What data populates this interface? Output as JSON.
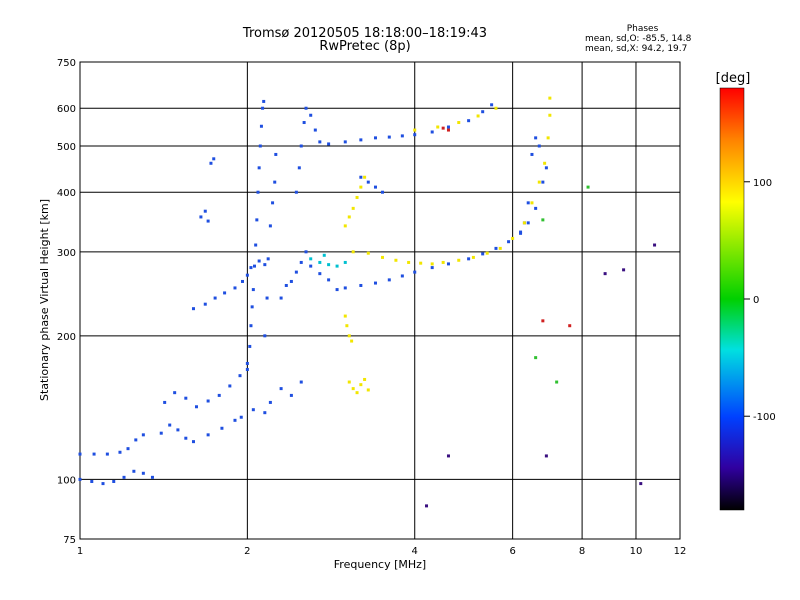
{
  "header": {
    "title": "Tromsø 20120505 18:18:00–18:19:43",
    "subtitle": "RwPretec (8p)"
  },
  "phases_box": {
    "heading": "Phases",
    "line_o": "mean, sd,O: -85.5, 14.8",
    "line_x": "mean, sd,X:  94.2, 19.7"
  },
  "colors": {
    "grid": "#000000",
    "o_mode": "#1f4fe0",
    "x_mode": "#f2e600"
  },
  "chart_data": {
    "type": "scatter",
    "xlabel": "Frequency [MHz]",
    "ylabel": "Stationary phase Virtual Height [km]",
    "x_scale": "log",
    "y_scale": "log",
    "xlim": [
      1,
      12
    ],
    "ylim": [
      75,
      750
    ],
    "x_ticks": [
      1,
      2,
      4,
      6,
      8,
      10,
      12
    ],
    "x_tick_labels": [
      "1",
      "2",
      "4",
      "6",
      "8",
      "10",
      "12"
    ],
    "x_gridlines": [
      2,
      4,
      6,
      8,
      10
    ],
    "y_ticks": [
      75,
      100,
      200,
      300,
      400,
      500,
      600,
      750
    ],
    "y_tick_labels": [
      "75",
      "100",
      "200",
      "300",
      "400",
      "500",
      "600",
      "750"
    ],
    "y_gridlines": [
      100,
      200,
      300,
      400,
      500,
      600
    ],
    "grid": true,
    "colorbar": {
      "label": "[deg]",
      "range": [
        -180,
        180
      ],
      "ticks": [
        100,
        0,
        -100
      ],
      "tick_labels": [
        "100",
        "0",
        "-100"
      ]
    },
    "series": [
      {
        "mode": "O",
        "color": "#1f4fe0",
        "points": [
          [
            1.0,
            100
          ],
          [
            1.05,
            99
          ],
          [
            1.1,
            98
          ],
          [
            1.15,
            99
          ],
          [
            1.2,
            101
          ],
          [
            1.25,
            104
          ],
          [
            1.3,
            103
          ],
          [
            1.35,
            101
          ],
          [
            1.0,
            113
          ],
          [
            1.06,
            113
          ],
          [
            1.12,
            113
          ],
          [
            1.18,
            114
          ],
          [
            1.22,
            116
          ],
          [
            1.26,
            121
          ],
          [
            1.3,
            124
          ],
          [
            1.4,
            125
          ],
          [
            1.45,
            130
          ],
          [
            1.5,
            127
          ],
          [
            1.55,
            122
          ],
          [
            1.6,
            120
          ],
          [
            1.7,
            124
          ],
          [
            1.8,
            128
          ],
          [
            1.9,
            133
          ],
          [
            1.95,
            135
          ],
          [
            1.42,
            145
          ],
          [
            1.48,
            152
          ],
          [
            1.55,
            148
          ],
          [
            1.62,
            142
          ],
          [
            1.7,
            146
          ],
          [
            1.78,
            150
          ],
          [
            1.86,
            157
          ],
          [
            1.94,
            165
          ],
          [
            2.0,
            175
          ],
          [
            1.6,
            228
          ],
          [
            1.68,
            233
          ],
          [
            1.75,
            240
          ],
          [
            1.82,
            246
          ],
          [
            1.9,
            252
          ],
          [
            1.96,
            260
          ],
          [
            2.0,
            268
          ],
          [
            2.03,
            278
          ],
          [
            2.1,
            287
          ],
          [
            2.15,
            282
          ],
          [
            1.65,
            355
          ],
          [
            1.68,
            365
          ],
          [
            1.7,
            348
          ],
          [
            1.72,
            460
          ],
          [
            1.74,
            470
          ],
          [
            2.0,
            170
          ],
          [
            2.02,
            190
          ],
          [
            2.03,
            210
          ],
          [
            2.04,
            230
          ],
          [
            2.05,
            250
          ],
          [
            2.06,
            280
          ],
          [
            2.07,
            310
          ],
          [
            2.08,
            350
          ],
          [
            2.09,
            400
          ],
          [
            2.1,
            450
          ],
          [
            2.11,
            500
          ],
          [
            2.12,
            550
          ],
          [
            2.13,
            600
          ],
          [
            2.14,
            620
          ],
          [
            2.15,
            200
          ],
          [
            2.17,
            240
          ],
          [
            2.18,
            290
          ],
          [
            2.2,
            340
          ],
          [
            2.22,
            380
          ],
          [
            2.24,
            420
          ],
          [
            2.25,
            480
          ],
          [
            2.3,
            240
          ],
          [
            2.35,
            255
          ],
          [
            2.4,
            260
          ],
          [
            2.45,
            272
          ],
          [
            2.5,
            285
          ],
          [
            2.55,
            300
          ],
          [
            2.6,
            280
          ],
          [
            2.7,
            270
          ],
          [
            2.8,
            262
          ],
          [
            2.45,
            400
          ],
          [
            2.48,
            450
          ],
          [
            2.5,
            500
          ],
          [
            2.53,
            560
          ],
          [
            2.55,
            600
          ],
          [
            2.6,
            580
          ],
          [
            2.65,
            540
          ],
          [
            2.7,
            510
          ],
          [
            2.8,
            505
          ],
          [
            3.0,
            510
          ],
          [
            3.2,
            515
          ],
          [
            3.4,
            520
          ],
          [
            3.6,
            522
          ],
          [
            3.8,
            525
          ],
          [
            4.0,
            528
          ],
          [
            4.3,
            535
          ],
          [
            4.6,
            548
          ],
          [
            5.0,
            565
          ],
          [
            5.3,
            590
          ],
          [
            5.5,
            610
          ],
          [
            2.9,
            250
          ],
          [
            3.0,
            252
          ],
          [
            3.2,
            255
          ],
          [
            3.4,
            258
          ],
          [
            3.6,
            262
          ],
          [
            3.8,
            267
          ],
          [
            4.0,
            272
          ],
          [
            4.3,
            278
          ],
          [
            4.6,
            283
          ],
          [
            5.0,
            290
          ],
          [
            5.3,
            297
          ],
          [
            5.6,
            305
          ],
          [
            5.9,
            315
          ],
          [
            6.2,
            328
          ],
          [
            6.4,
            345
          ],
          [
            6.6,
            370
          ],
          [
            6.8,
            420
          ],
          [
            6.9,
            450
          ],
          [
            6.2,
            330
          ],
          [
            6.3,
            345
          ],
          [
            6.4,
            380
          ],
          [
            6.5,
            480
          ],
          [
            6.6,
            520
          ],
          [
            6.7,
            500
          ],
          [
            3.2,
            430
          ],
          [
            3.3,
            420
          ],
          [
            3.4,
            410
          ],
          [
            3.5,
            400
          ],
          [
            2.05,
            140
          ],
          [
            2.15,
            138
          ],
          [
            2.2,
            145
          ],
          [
            2.3,
            155
          ],
          [
            2.4,
            150
          ],
          [
            2.5,
            160
          ]
        ]
      },
      {
        "mode": "X",
        "color": "#f2e600",
        "points": [
          [
            3.1,
            300
          ],
          [
            3.3,
            298
          ],
          [
            3.5,
            292
          ],
          [
            3.7,
            288
          ],
          [
            3.9,
            285
          ],
          [
            4.1,
            284
          ],
          [
            4.3,
            283
          ],
          [
            4.5,
            285
          ],
          [
            4.8,
            288
          ],
          [
            5.1,
            292
          ],
          [
            5.4,
            298
          ],
          [
            5.7,
            305
          ],
          [
            6.0,
            320
          ],
          [
            6.3,
            345
          ],
          [
            6.5,
            380
          ],
          [
            6.7,
            420
          ],
          [
            6.85,
            460
          ],
          [
            6.95,
            520
          ],
          [
            7.0,
            580
          ],
          [
            7.0,
            630
          ],
          [
            4.0,
            540
          ],
          [
            4.4,
            548
          ],
          [
            4.8,
            560
          ],
          [
            5.2,
            578
          ],
          [
            5.6,
            600
          ],
          [
            3.0,
            340
          ],
          [
            3.05,
            355
          ],
          [
            3.1,
            370
          ],
          [
            3.15,
            390
          ],
          [
            3.2,
            410
          ],
          [
            3.25,
            430
          ],
          [
            3.05,
            160
          ],
          [
            3.1,
            155
          ],
          [
            3.15,
            152
          ],
          [
            3.2,
            158
          ],
          [
            3.25,
            162
          ],
          [
            3.3,
            154
          ],
          [
            3.0,
            220
          ],
          [
            3.02,
            210
          ],
          [
            3.05,
            200
          ],
          [
            3.08,
            195
          ]
        ]
      },
      {
        "mode": "other",
        "color": "#00c0d0",
        "points": [
          [
            2.6,
            290
          ],
          [
            2.7,
            285
          ],
          [
            2.8,
            282
          ],
          [
            2.9,
            280
          ],
          [
            3.0,
            285
          ],
          [
            2.75,
            295
          ]
        ]
      },
      {
        "mode": "other",
        "color": "#d02020",
        "points": [
          [
            6.8,
            215
          ],
          [
            7.6,
            210
          ],
          [
            4.6,
            540
          ],
          [
            4.5,
            545
          ]
        ]
      },
      {
        "mode": "other",
        "color": "#3a1080",
        "points": [
          [
            4.6,
            112
          ],
          [
            6.9,
            112
          ],
          [
            8.8,
            270
          ],
          [
            9.5,
            275
          ],
          [
            10.8,
            310
          ],
          [
            10.2,
            98
          ],
          [
            4.2,
            88
          ]
        ]
      },
      {
        "mode": "other",
        "color": "#30c030",
        "points": [
          [
            6.6,
            180
          ],
          [
            7.2,
            160
          ],
          [
            8.2,
            410
          ],
          [
            6.8,
            350
          ]
        ]
      }
    ]
  }
}
